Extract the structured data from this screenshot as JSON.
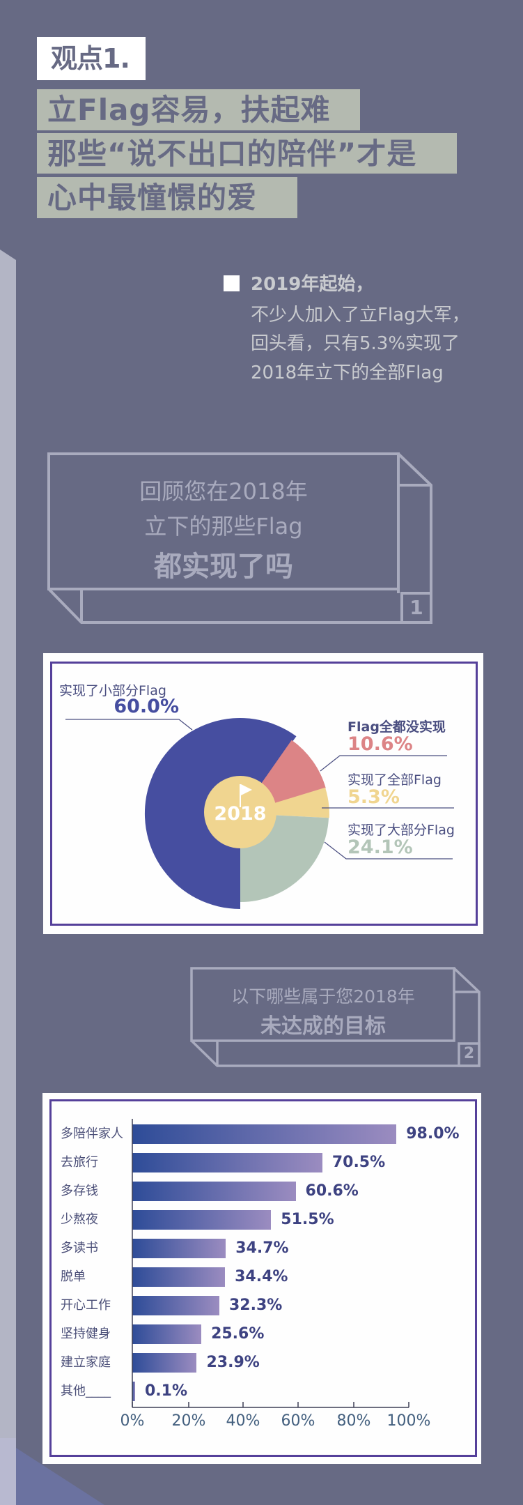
{
  "header": {
    "tag": "观点1.",
    "title_lines": [
      "立Flag容易，扶起难",
      "那些“说不出口的陪伴”才是",
      "心中最憧憬的爱"
    ]
  },
  "intro": {
    "lines": [
      "2019年起始，",
      "不少人加入了立Flag大军，",
      "回头看，只有5.3%实现了",
      "2018年立下的全部Flag"
    ]
  },
  "question1": {
    "lines": [
      "回顾您在2018年",
      "立下的那些Flag"
    ],
    "emphasis": "都实现了吗",
    "number": "1"
  },
  "question2": {
    "line": "以下哪些属于您2018年",
    "emphasis": "未达成的目标",
    "number": "2"
  },
  "colors": {
    "background": "#676a84",
    "title_highlight": "#b4bab0",
    "pie_blue": "#464ea0",
    "pie_pink": "#dc8486",
    "pie_yellow": "#f0d590",
    "pie_green": "#b3c5b8",
    "bar_start": "#2e4c98",
    "bar_end": "#9b8cc0"
  },
  "chart_data": [
    {
      "type": "pie",
      "title": "回顾您在2018年立下的那些Flag都实现了吗",
      "center_label": "2018",
      "categories": [
        "实现了小部分Flag",
        "Flag全都没实现",
        "实现了全部Flag",
        "实现了大部分Flag"
      ],
      "values": [
        60.0,
        10.6,
        5.3,
        24.1
      ],
      "value_labels": [
        "60.0%",
        "10.6%",
        "5.3%",
        "24.1%"
      ],
      "colors": [
        "#464ea0",
        "#dc8486",
        "#f0d590",
        "#b3c5b8"
      ]
    },
    {
      "type": "bar",
      "orientation": "horizontal",
      "title": "以下哪些属于您2018年未达成的目标",
      "categories": [
        "多陪伴家人",
        "去旅行",
        "多存钱",
        "少熬夜",
        "多读书",
        "脱单",
        "开心工作",
        "坚持健身",
        "建立家庭",
        "其他____"
      ],
      "values": [
        98.0,
        70.5,
        60.6,
        51.5,
        34.7,
        34.4,
        32.3,
        25.6,
        23.9,
        0.1
      ],
      "value_labels": [
        "98.0%",
        "70.5%",
        "60.6%",
        "51.5%",
        "34.7%",
        "34.4%",
        "32.3%",
        "25.6%",
        "23.9%",
        "0.1%"
      ],
      "xlabel": "",
      "ylabel": "",
      "xlim": [
        0,
        100
      ],
      "xticks": [
        "0%",
        "20%",
        "40%",
        "60%",
        "80%",
        "100%"
      ]
    }
  ]
}
